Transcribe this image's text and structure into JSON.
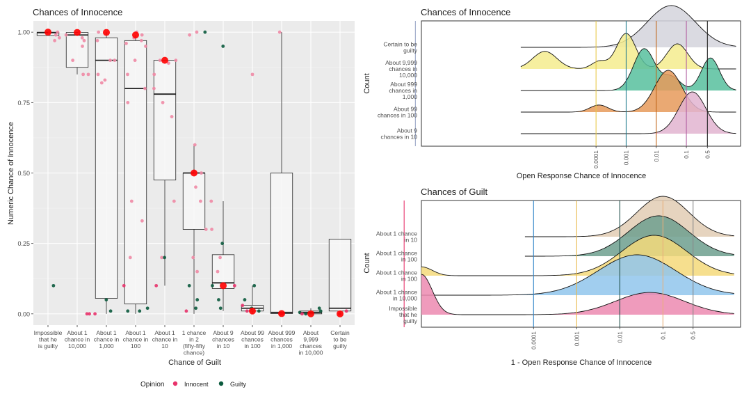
{
  "colors": {
    "panel_bg": "#ebebeb",
    "grid_major": "#ffffff",
    "grid_minor": "#f4f4f4",
    "innocent": "#e8336b",
    "innocent_light": "#f08aa5",
    "guilty": "#0b5a3d",
    "mean_marker": "#ff0000",
    "box_fill": "#f7f7f7",
    "text": "#222222",
    "axis_text": "#4d4d4d"
  },
  "chart_data": [
    {
      "id": "boxplot",
      "type": "box",
      "title": "Chances of Innocence",
      "xlabel": "Chance of Guilt",
      "ylabel": "Numeric Chance of Innocence",
      "ylim": [
        -0.04,
        1.04
      ],
      "yticks": [
        0,
        0.25,
        0.5,
        0.75,
        1
      ],
      "ytick_labels": [
        "0.00",
        "0.25",
        "0.50",
        "0.75",
        "1.00"
      ],
      "grid": true,
      "legend": {
        "title": "Opinion",
        "position": "bottom",
        "items": [
          {
            "label": "Innocent",
            "color": "#e8336b"
          },
          {
            "label": "Guilty",
            "color": "#0b5a3d"
          }
        ]
      },
      "categories": [
        {
          "label": "Impossible that he is guilty",
          "lines": [
            "Impossible",
            "that he",
            "is guilty"
          ]
        },
        {
          "label": "About 1 chance in 10,000",
          "lines": [
            "About 1",
            "chance in",
            "10,000"
          ]
        },
        {
          "label": "About 1 chance in 1,000",
          "lines": [
            "About 1",
            "chance in",
            "1,000"
          ]
        },
        {
          "label": "About 1 chance in 100",
          "lines": [
            "About 1",
            "chance in",
            "100"
          ]
        },
        {
          "label": "About 1 chance in 10",
          "lines": [
            "About 1",
            "chance in",
            "10"
          ]
        },
        {
          "label": "1 chance in 2 (fifty-fifty chance)",
          "lines": [
            "1 chance",
            "in 2",
            "(fifty-fifty",
            "chance)"
          ]
        },
        {
          "label": "About 9 chances in 10",
          "lines": [
            "About 9",
            "chances",
            "in 10"
          ]
        },
        {
          "label": "About 99 chances in 100",
          "lines": [
            "About 99",
            "chances",
            "in 100"
          ]
        },
        {
          "label": "About 999 chances in 1,000",
          "lines": [
            "About 999",
            "chances",
            "in 1,000"
          ]
        },
        {
          "label": "About 9,999 chances in 10,000",
          "lines": [
            "About",
            "9,999",
            "chances",
            "in 10,000"
          ]
        },
        {
          "label": "Certain to be guilty",
          "lines": [
            "Certain",
            "to be",
            "guilty"
          ]
        }
      ],
      "boxes": [
        {
          "q1": 0.988,
          "median": 0.998,
          "q3": 1.0,
          "lo": 0.988,
          "hi": 1.0,
          "mean": 1.0
        },
        {
          "q1": 0.875,
          "median": 0.99,
          "q3": 0.999,
          "lo": 0.85,
          "hi": 1.0,
          "mean": 0.999
        },
        {
          "q1": 0.055,
          "median": 0.9,
          "q3": 0.98,
          "lo": 0.0,
          "hi": 1.0,
          "mean": 0.999
        },
        {
          "q1": 0.035,
          "median": 0.8,
          "q3": 0.97,
          "lo": 0.0,
          "hi": 0.99,
          "mean": 0.99
        },
        {
          "q1": 0.475,
          "median": 0.78,
          "q3": 0.9,
          "lo": 0.1,
          "hi": 0.9,
          "mean": 0.9
        },
        {
          "q1": 0.3,
          "median": 0.5,
          "q3": 0.5,
          "lo": 0.0,
          "hi": 0.6,
          "mean": 0.5
        },
        {
          "q1": 0.09,
          "median": 0.11,
          "q3": 0.21,
          "lo": 0.01,
          "hi": 0.4,
          "mean": 0.1
        },
        {
          "q1": 0.01,
          "median": 0.02,
          "q3": 0.03,
          "lo": 0.0,
          "hi": 0.1,
          "mean": 0.01
        },
        {
          "q1": 0.001,
          "median": 0.005,
          "q3": 0.5,
          "lo": 0.0,
          "hi": 1.0,
          "mean": 0.001
        },
        {
          "q1": 0.0,
          "median": 0.005,
          "q3": 0.01,
          "lo": 0.0,
          "hi": 0.02,
          "mean": 0.0001
        },
        {
          "q1": 0.01,
          "median": 0.02,
          "q3": 0.265,
          "lo": 0.0,
          "hi": 0.265,
          "mean": 0.0
        }
      ],
      "points": [
        {
          "cat": 0,
          "y": 1.0,
          "op": "Innocent"
        },
        {
          "cat": 0,
          "y": 0.99,
          "op": "Innocent"
        },
        {
          "cat": 0,
          "y": 0.98,
          "op": "Innocent"
        },
        {
          "cat": 0,
          "y": 0.97,
          "op": "Innocent"
        },
        {
          "cat": 0,
          "y": 1.0,
          "op": "Innocent"
        },
        {
          "cat": 0,
          "y": 0.1,
          "op": "Guilty"
        },
        {
          "cat": 1,
          "y": 1.0,
          "op": "Innocent"
        },
        {
          "cat": 1,
          "y": 0.99,
          "op": "Innocent"
        },
        {
          "cat": 1,
          "y": 0.98,
          "op": "Innocent"
        },
        {
          "cat": 1,
          "y": 0.97,
          "op": "Innocent"
        },
        {
          "cat": 1,
          "y": 0.95,
          "op": "Innocent"
        },
        {
          "cat": 1,
          "y": 0.9,
          "op": "Innocent"
        },
        {
          "cat": 1,
          "y": 0.85,
          "op": "Innocent"
        },
        {
          "cat": 1,
          "y": 0.85,
          "op": "Innocent"
        },
        {
          "cat": 1,
          "y": 0.0,
          "op": "Innocent"
        },
        {
          "cat": 1,
          "y": 0.0,
          "op": "Innocent"
        },
        {
          "cat": 2,
          "y": 1.0,
          "op": "Innocent"
        },
        {
          "cat": 2,
          "y": 0.97,
          "op": "Innocent"
        },
        {
          "cat": 2,
          "y": 0.9,
          "op": "Innocent"
        },
        {
          "cat": 2,
          "y": 0.9,
          "op": "Innocent"
        },
        {
          "cat": 2,
          "y": 0.85,
          "op": "Innocent"
        },
        {
          "cat": 2,
          "y": 0.83,
          "op": "Innocent"
        },
        {
          "cat": 2,
          "y": 0.82,
          "op": "Innocent"
        },
        {
          "cat": 2,
          "y": 0.05,
          "op": "Guilty"
        },
        {
          "cat": 2,
          "y": 0.01,
          "op": "Guilty"
        },
        {
          "cat": 2,
          "y": 0.0,
          "op": "Innocent"
        },
        {
          "cat": 3,
          "y": 1.0,
          "op": "Innocent"
        },
        {
          "cat": 3,
          "y": 0.99,
          "op": "Innocent"
        },
        {
          "cat": 3,
          "y": 0.98,
          "op": "Innocent"
        },
        {
          "cat": 3,
          "y": 0.97,
          "op": "Innocent"
        },
        {
          "cat": 3,
          "y": 0.96,
          "op": "Innocent"
        },
        {
          "cat": 3,
          "y": 0.95,
          "op": "Innocent"
        },
        {
          "cat": 3,
          "y": 0.9,
          "op": "Innocent"
        },
        {
          "cat": 3,
          "y": 0.85,
          "op": "Innocent"
        },
        {
          "cat": 3,
          "y": 0.8,
          "op": "Innocent"
        },
        {
          "cat": 3,
          "y": 0.75,
          "op": "Innocent"
        },
        {
          "cat": 3,
          "y": 0.4,
          "op": "Innocent"
        },
        {
          "cat": 3,
          "y": 0.33,
          "op": "Innocent"
        },
        {
          "cat": 3,
          "y": 0.2,
          "op": "Innocent"
        },
        {
          "cat": 3,
          "y": 0.1,
          "op": "Innocent"
        },
        {
          "cat": 3,
          "y": 0.02,
          "op": "Guilty"
        },
        {
          "cat": 3,
          "y": 0.01,
          "op": "Guilty"
        },
        {
          "cat": 3,
          "y": 0.01,
          "op": "Guilty"
        },
        {
          "cat": 4,
          "y": 0.9,
          "op": "Innocent"
        },
        {
          "cat": 4,
          "y": 0.9,
          "op": "Innocent"
        },
        {
          "cat": 4,
          "y": 0.89,
          "op": "Innocent"
        },
        {
          "cat": 4,
          "y": 0.85,
          "op": "Innocent"
        },
        {
          "cat": 4,
          "y": 0.8,
          "op": "Innocent"
        },
        {
          "cat": 4,
          "y": 0.75,
          "op": "Innocent"
        },
        {
          "cat": 4,
          "y": 0.7,
          "op": "Innocent"
        },
        {
          "cat": 4,
          "y": 0.4,
          "op": "Innocent"
        },
        {
          "cat": 4,
          "y": 0.2,
          "op": "Innocent"
        },
        {
          "cat": 4,
          "y": 0.2,
          "op": "Guilty"
        },
        {
          "cat": 4,
          "y": 0.1,
          "op": "Innocent"
        },
        {
          "cat": 5,
          "y": 1.0,
          "op": "Guilty"
        },
        {
          "cat": 5,
          "y": 1.0,
          "op": "Innocent"
        },
        {
          "cat": 5,
          "y": 0.99,
          "op": "Innocent"
        },
        {
          "cat": 5,
          "y": 0.6,
          "op": "Innocent"
        },
        {
          "cat": 5,
          "y": 0.5,
          "op": "Innocent"
        },
        {
          "cat": 5,
          "y": 0.5,
          "op": "Innocent"
        },
        {
          "cat": 5,
          "y": 0.45,
          "op": "Innocent"
        },
        {
          "cat": 5,
          "y": 0.4,
          "op": "Innocent"
        },
        {
          "cat": 5,
          "y": 0.3,
          "op": "Innocent"
        },
        {
          "cat": 5,
          "y": 0.2,
          "op": "Innocent"
        },
        {
          "cat": 5,
          "y": 0.15,
          "op": "Innocent"
        },
        {
          "cat": 5,
          "y": 0.1,
          "op": "Guilty"
        },
        {
          "cat": 5,
          "y": 0.05,
          "op": "Guilty"
        },
        {
          "cat": 5,
          "y": 0.02,
          "op": "Guilty"
        },
        {
          "cat": 5,
          "y": 0.01,
          "op": "Innocent"
        },
        {
          "cat": 6,
          "y": 0.95,
          "op": "Guilty"
        },
        {
          "cat": 6,
          "y": 0.4,
          "op": "Innocent"
        },
        {
          "cat": 6,
          "y": 0.3,
          "op": "Innocent"
        },
        {
          "cat": 6,
          "y": 0.25,
          "op": "Guilty"
        },
        {
          "cat": 6,
          "y": 0.2,
          "op": "Innocent"
        },
        {
          "cat": 6,
          "y": 0.15,
          "op": "Innocent"
        },
        {
          "cat": 6,
          "y": 0.1,
          "op": "Innocent"
        },
        {
          "cat": 6,
          "y": 0.1,
          "op": "Guilty"
        },
        {
          "cat": 6,
          "y": 0.05,
          "op": "Guilty"
        },
        {
          "cat": 6,
          "y": 0.02,
          "op": "Guilty"
        },
        {
          "cat": 7,
          "y": 0.85,
          "op": "Innocent"
        },
        {
          "cat": 7,
          "y": 0.1,
          "op": "Guilty"
        },
        {
          "cat": 7,
          "y": 0.05,
          "op": "Guilty"
        },
        {
          "cat": 7,
          "y": 0.03,
          "op": "Innocent"
        },
        {
          "cat": 7,
          "y": 0.02,
          "op": "Guilty"
        },
        {
          "cat": 7,
          "y": 0.01,
          "op": "Guilty"
        },
        {
          "cat": 7,
          "y": 0.01,
          "op": "Innocent"
        },
        {
          "cat": 8,
          "y": 1.0,
          "op": "Innocent"
        },
        {
          "cat": 8,
          "y": 0.001,
          "op": "Innocent"
        },
        {
          "cat": 8,
          "y": 0.0,
          "op": "Innocent"
        },
        {
          "cat": 9,
          "y": 0.02,
          "op": "Guilty"
        },
        {
          "cat": 9,
          "y": 0.01,
          "op": "Guilty"
        },
        {
          "cat": 9,
          "y": 0.005,
          "op": "Guilty"
        },
        {
          "cat": 9,
          "y": 0.0,
          "op": "Innocent"
        },
        {
          "cat": 9,
          "y": 0.0,
          "op": "Guilty"
        },
        {
          "cat": 10,
          "y": 0.0,
          "op": "Innocent"
        },
        {
          "cat": 10,
          "y": 0.01,
          "op": "Innocent"
        }
      ]
    },
    {
      "id": "ridge-innocence",
      "type": "area",
      "subtype": "ridgeline",
      "title": "Chances of Innocence",
      "xlabel": "Open Response Chance of Innocence",
      "ylabel": "Count",
      "xscale": "log10",
      "xlim_log10": [
        -9.8,
        0.8
      ],
      "xticks": [
        0.0001,
        0.001,
        0.01,
        0.1,
        0.5
      ],
      "xtick_labels": [
        "0.0001",
        "0.001",
        "0.01",
        "0.1",
        "0.5"
      ],
      "vlines": [
        {
          "x": 1e-10,
          "color": "#9aa7c7"
        },
        {
          "x": 0.0001,
          "color": "#e8c94a"
        },
        {
          "x": 0.001,
          "color": "#1f7a8c"
        },
        {
          "x": 0.01,
          "color": "#c0671a"
        },
        {
          "x": 0.1,
          "color": "#b15fa0"
        },
        {
          "x": 0.5,
          "color": "#222222"
        }
      ],
      "series": [
        {
          "name": "About 9 chances in 10",
          "lines": [
            "About 9",
            "chances in 10"
          ],
          "color": "#e2b4d0",
          "start": -6.5,
          "peaks": [
            {
              "mu": -0.8,
              "sd": 0.45,
              "h": 1.0
            }
          ]
        },
        {
          "name": "About 99 chances in 100",
          "lines": [
            "About 99",
            "chances in 100"
          ],
          "color": "#e69a5a",
          "start": -6.5,
          "peaks": [
            {
              "mu": -1.6,
              "sd": 0.45,
              "h": 1.0
            },
            {
              "mu": -3.9,
              "sd": 0.3,
              "h": 0.17
            }
          ]
        },
        {
          "name": "About 999 chances in 1,000",
          "lines": [
            "About 999",
            "chances in",
            "1,000"
          ],
          "color": "#57c09e",
          "start": -6.5,
          "peaks": [
            {
              "mu": -2.4,
              "sd": 0.35,
              "h": 1.0
            },
            {
              "mu": -0.2,
              "sd": 0.3,
              "h": 0.78
            },
            {
              "mu": -1.5,
              "sd": 0.3,
              "h": 0.32
            }
          ]
        },
        {
          "name": "About 9,999 chances in 10,000",
          "lines": [
            "About 9,999",
            "chances in",
            "10,000"
          ],
          "color": "#f4ec8e",
          "start": -6.5,
          "peaks": [
            {
              "mu": -3.0,
              "sd": 0.32,
              "h": 0.85
            },
            {
              "mu": -5.7,
              "sd": 0.4,
              "h": 0.42
            },
            {
              "mu": -1.3,
              "sd": 0.35,
              "h": 0.6
            },
            {
              "mu": -3.9,
              "sd": 0.25,
              "h": 0.18
            }
          ]
        },
        {
          "name": "Certain to be guilty",
          "lines": [
            "Certain to be",
            "guilty"
          ],
          "color": "#d4d4dc",
          "start": -6.5,
          "peaks": [
            {
              "mu": -1.5,
              "sd": 0.8,
              "h": 1.0
            }
          ]
        }
      ]
    },
    {
      "id": "ridge-guilt",
      "type": "area",
      "subtype": "ridgeline",
      "title": "Chances of Guilt",
      "xlabel": "1 - Open Response Chance of Innocence",
      "ylabel": "Count",
      "xscale": "log10",
      "xlim_log10": [
        -6.6,
        0.8
      ],
      "xticks": [
        0.0001,
        0.001,
        0.01,
        0.1,
        0.5
      ],
      "xtick_labels": [
        "0.0001",
        "0.001",
        "0.01",
        "0.1",
        "0.5"
      ],
      "vlines": [
        {
          "x": 1e-07,
          "color": "#e8336b"
        },
        {
          "x": 0.0001,
          "color": "#2f83c9"
        },
        {
          "x": 0.001,
          "color": "#e8b84a"
        },
        {
          "x": 0.01,
          "color": "#1e4f4a"
        },
        {
          "x": 0.1,
          "color": "#e8b07a"
        },
        {
          "x": 0.5,
          "color": "#888888"
        }
      ],
      "series": [
        {
          "name": "Impossible that he is guilty",
          "lines": [
            "Impossible",
            "that he",
            "guilty"
          ],
          "color": "#ec8ab0",
          "start": -6.6,
          "peaks": [
            {
              "mu": -6.6,
              "sd": 0.25,
              "h": 1.0
            },
            {
              "mu": -1.3,
              "sd": 0.8,
              "h": 0.55
            }
          ]
        },
        {
          "name": "About 1 chance in 10,000",
          "lines": [
            "About 1 chance",
            "in 10,000"
          ],
          "color": "#90c6ec",
          "start": -6.6,
          "peaks": [
            {
              "mu": -1.6,
              "sd": 0.9,
              "h": 1.0
            }
          ]
        },
        {
          "name": "About 1 chance in 100",
          "lines": [
            "About 1 chance",
            "in 100"
          ],
          "color": "#f4d97a",
          "start": -6.6,
          "peaks": [
            {
              "mu": -1.2,
              "sd": 0.75,
              "h": 1.0
            },
            {
              "mu": -6.6,
              "sd": 0.25,
              "h": 0.22
            }
          ]
        },
        {
          "name": "About 1 chance in 100",
          "lines": [
            "About 1 chance",
            "in 100"
          ],
          "color": "#6d9f8e",
          "start": -4.2,
          "peaks": [
            {
              "mu": -1.1,
              "sd": 0.7,
              "h": 1.0
            }
          ]
        },
        {
          "name": "About 1 chance in 10",
          "lines": [
            "About 1 chance",
            "in 10"
          ],
          "color": "#e2cdb4",
          "start": -4.2,
          "peaks": [
            {
              "mu": -1.0,
              "sd": 0.6,
              "h": 1.0
            }
          ]
        }
      ]
    }
  ]
}
